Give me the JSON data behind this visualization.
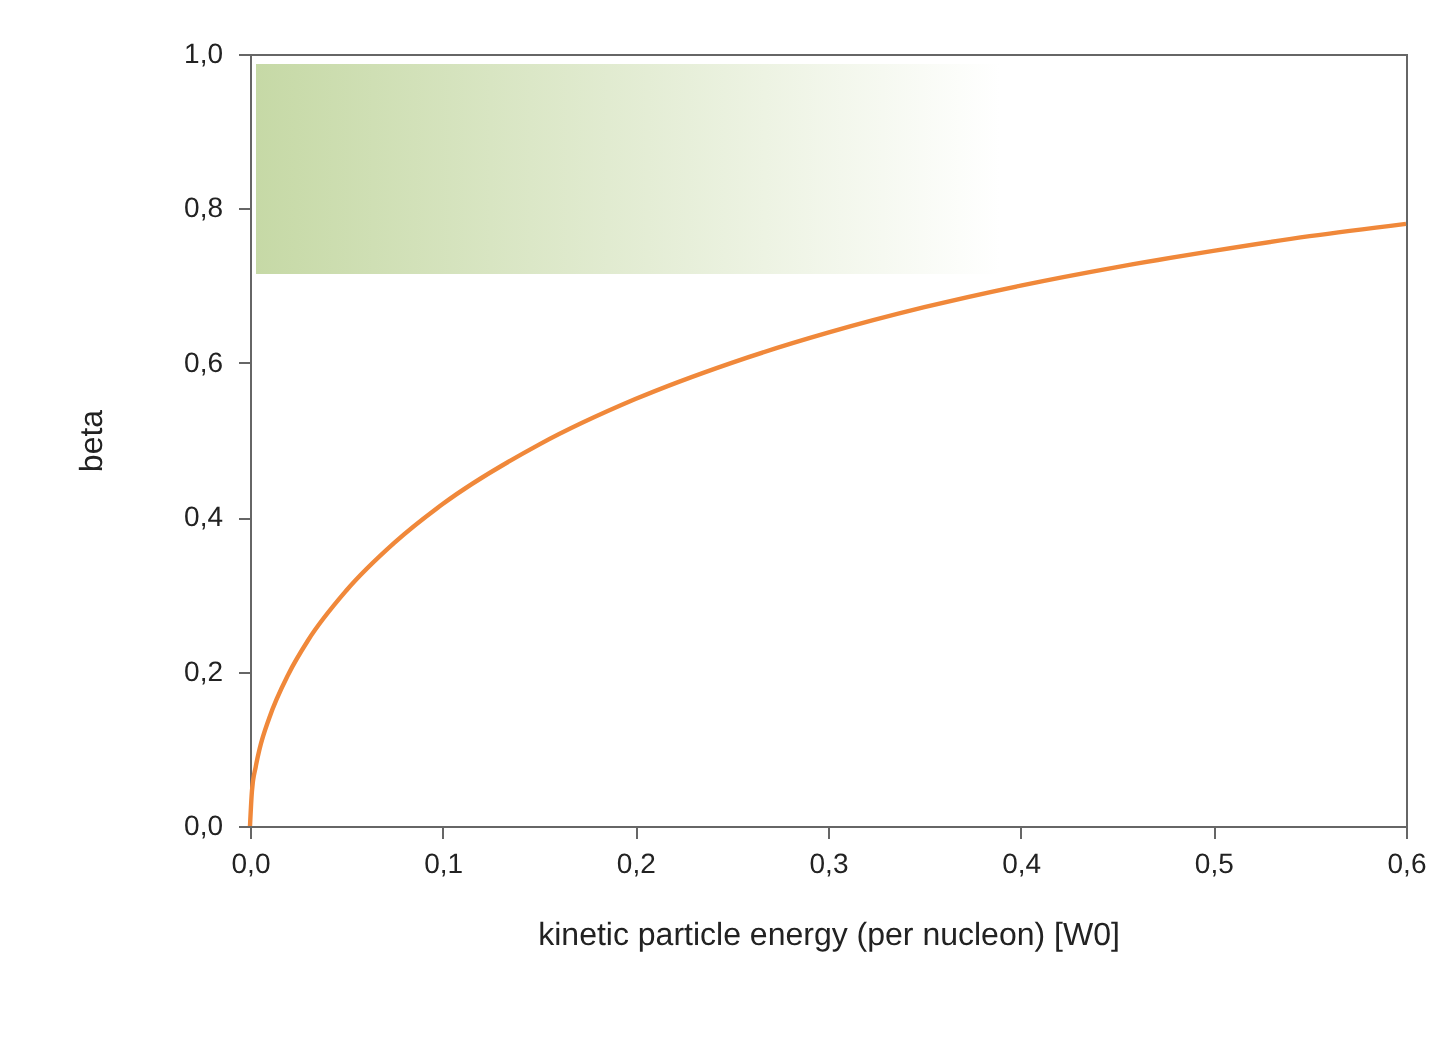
{
  "chart_data": {
    "type": "line",
    "xlabel": "kinetic particle energy (per nucleon) [W0]",
    "ylabel": "beta",
    "x": [
      0,
      0.001,
      0.003,
      0.005,
      0.01,
      0.02,
      0.03,
      0.05,
      0.075,
      0.1,
      0.15,
      0.2,
      0.25,
      0.3,
      0.35,
      0.4,
      0.45,
      0.5,
      0.55,
      0.6
    ],
    "series": [
      {
        "color": "#f0883a",
        "values": [
          0,
          0.045,
          0.077,
          0.1,
          0.14,
          0.197,
          0.24,
          0.305,
          0.367,
          0.417,
          0.494,
          0.553,
          0.6,
          0.639,
          0.672,
          0.7,
          0.724,
          0.745,
          0.764,
          0.78
        ]
      }
    ],
    "xlim": [
      0,
      0.6
    ],
    "xticks": [
      {
        "value": 0,
        "label": "0,0"
      },
      {
        "value": 0.1,
        "label": "0,1"
      },
      {
        "value": 0.2,
        "label": "0,2"
      },
      {
        "value": 0.3,
        "label": "0,3"
      },
      {
        "value": 0.4,
        "label": "0,4"
      },
      {
        "value": 0.5,
        "label": "0,5"
      },
      {
        "value": 0.6,
        "label": "0,6"
      }
    ],
    "ylim": [
      0,
      1
    ],
    "yticks": [
      {
        "value": 0,
        "label": "0,0"
      },
      {
        "value": 0.2,
        "label": "0,2"
      },
      {
        "value": 0.4,
        "label": "0,4"
      },
      {
        "value": 0.6,
        "label": "0,6"
      },
      {
        "value": 0.8,
        "label": "0,8"
      },
      {
        "value": 1,
        "label": "1,0"
      }
    ],
    "grid": false,
    "marker": "none",
    "line_style": "solid"
  }
}
